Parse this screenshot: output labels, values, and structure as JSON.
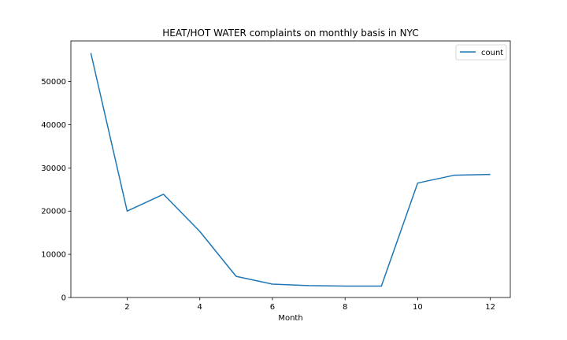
{
  "chart_data": {
    "type": "line",
    "title": "HEAT/HOT WATER complaints on monthly basis in NYC",
    "xlabel": "Month",
    "ylabel": "",
    "x": [
      1,
      2,
      3,
      4,
      5,
      6,
      7,
      8,
      9,
      10,
      11,
      12
    ],
    "series": [
      {
        "name": "count",
        "color": "#1f77b4",
        "values": [
          56600,
          20000,
          23900,
          15300,
          4900,
          3100,
          2750,
          2650,
          2650,
          26500,
          28300,
          28500
        ]
      }
    ],
    "xlim": [
      0.45,
      12.55
    ],
    "ylim": [
      0,
      59400
    ],
    "xticks": [
      2,
      4,
      6,
      8,
      10,
      12
    ],
    "xtick_labels": [
      "2",
      "4",
      "6",
      "8",
      "10",
      "12"
    ],
    "yticks": [
      0,
      10000,
      20000,
      30000,
      40000,
      50000
    ],
    "ytick_labels": [
      "0",
      "10000",
      "20000",
      "30000",
      "40000",
      "50000"
    ],
    "grid": false,
    "legend_position": "top-right"
  }
}
